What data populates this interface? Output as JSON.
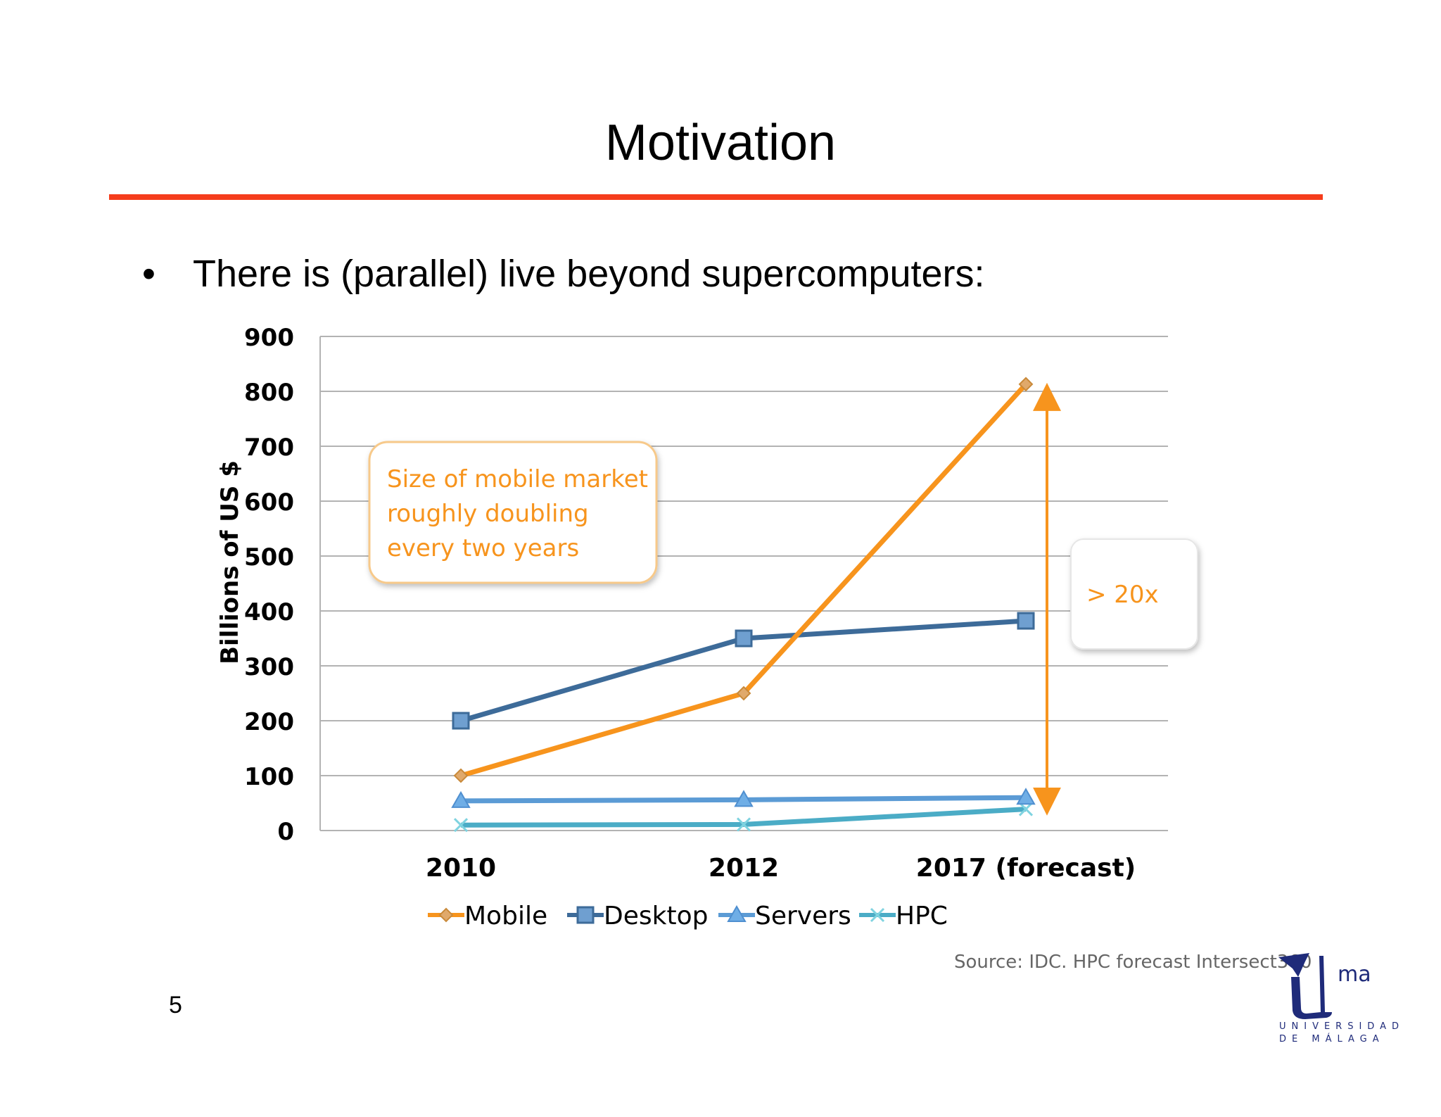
{
  "slide": {
    "title": "Motivation",
    "bullet_marker": "•",
    "bullet_text": "There is (parallel) live beyond supercomputers:",
    "page_number": "5",
    "source": "Source: IDC. HPC forecast Intersect360",
    "logo_text": "ma",
    "logo_sub_1": "UNIVERSIDAD",
    "logo_sub_2": "DE MÁLAGA",
    "accent_color": "#f53d1c"
  },
  "chart_data": {
    "type": "line",
    "title": "",
    "xlabel": "",
    "ylabel": "Billions of US $",
    "categories": [
      "2010",
      "2012",
      "2017 (forecast)"
    ],
    "ylim": [
      0,
      900
    ],
    "yticks": [
      0,
      100,
      200,
      300,
      400,
      500,
      600,
      700,
      800,
      900
    ],
    "grid": true,
    "legend_position": "bottom",
    "series": [
      {
        "name": "Mobile",
        "values": [
          100,
          250,
          813
        ],
        "color": "#f7941d",
        "marker": "diamond"
      },
      {
        "name": "Desktop",
        "values": [
          200,
          350,
          382
        ],
        "color": "#3d6b99",
        "marker": "square"
      },
      {
        "name": "Servers",
        "values": [
          54,
          56,
          60
        ],
        "color": "#5b9bd5",
        "marker": "triangle"
      },
      {
        "name": "HPC",
        "values": [
          10,
          11,
          39
        ],
        "color": "#4bacc6",
        "marker": "x"
      }
    ],
    "annotations": [
      {
        "text_lines": [
          "Size of mobile market",
          "roughly doubling",
          "every two years"
        ],
        "color": "#f7941d"
      },
      {
        "text": "> 20x",
        "color": "#f7941d"
      }
    ]
  }
}
